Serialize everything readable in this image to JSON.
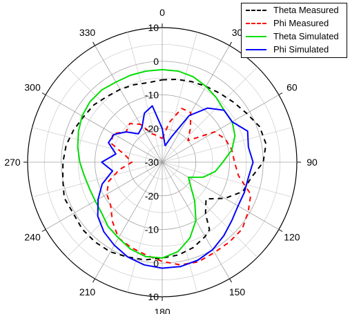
{
  "chart_data": {
    "type": "polar",
    "radial_axis": {
      "range": [
        -30,
        10
      ],
      "tick_labels": [
        "10",
        "0",
        "-10",
        "-20",
        "-30"
      ],
      "tick_values": [
        10,
        0,
        -10,
        -20,
        -30
      ]
    },
    "angular_axis": {
      "zero_at": "top",
      "direction": "clockwise",
      "tick_labels": [
        "0",
        "30",
        "60",
        "90",
        "120",
        "150",
        "180",
        "210",
        "240",
        "270",
        "300",
        "330"
      ],
      "tick_values": [
        0,
        30,
        60,
        90,
        120,
        150,
        180,
        210,
        240,
        270,
        300,
        330
      ]
    },
    "grid": true,
    "legend_position": "top-right",
    "series": [
      {
        "name": "Theta Measured",
        "color": "#000000",
        "dash": "dashed",
        "angles": [
          0,
          10,
          20,
          30,
          40,
          50,
          60,
          70,
          80,
          90,
          100,
          110,
          120,
          130,
          140,
          145,
          150,
          160,
          170,
          180,
          190,
          200,
          210,
          220,
          230,
          240,
          250,
          260,
          270,
          280,
          290,
          300,
          310,
          320,
          330,
          340,
          350,
          360
        ],
        "r": [
          -5.5,
          -5.0,
          -4.5,
          -4.0,
          -3.3,
          -2.3,
          -1.0,
          0.8,
          1.3,
          0.0,
          -3.2,
          -4.5,
          -8.5,
          -13.0,
          -10.0,
          -5.5,
          -4.5,
          -3.0,
          -2.0,
          -1.5,
          -0.5,
          0.0,
          0.8,
          1.0,
          1.0,
          0.5,
          1.0,
          0.0,
          -0.5,
          -1.0,
          -2.0,
          -3.0,
          -3.5,
          -4.5,
          -5.0,
          -5.5,
          -6.0,
          -5.5
        ]
      },
      {
        "name": "Phi Measured",
        "color": "#ff0000",
        "dash": "dashed",
        "angles": [
          0,
          10,
          20,
          30,
          40,
          50,
          60,
          70,
          80,
          90,
          100,
          110,
          120,
          130,
          140,
          150,
          160,
          170,
          180,
          190,
          200,
          210,
          220,
          230,
          240,
          250,
          260,
          270,
          280,
          290,
          300,
          310,
          320,
          330,
          340,
          350,
          360
        ],
        "r": [
          -23,
          -18,
          -13,
          -13,
          -17,
          -20,
          -12,
          -10,
          -9,
          -8.5,
          -7,
          -2,
          -0.5,
          1,
          1,
          1,
          1.5,
          1,
          -0.5,
          -2,
          -3,
          -4,
          -7,
          -10,
          -11,
          -13,
          -17,
          -21,
          -19,
          -14,
          -13,
          -16,
          -15,
          -17,
          -21,
          -22,
          -23
        ]
      },
      {
        "name": "Theta Simulated",
        "color": "#00dd00",
        "dash": "solid",
        "angles": [
          0,
          10,
          20,
          30,
          40,
          50,
          60,
          70,
          80,
          90,
          100,
          110,
          120,
          130,
          140,
          150,
          160,
          170,
          180,
          190,
          200,
          210,
          220,
          230,
          240,
          250,
          260,
          270,
          280,
          290,
          300,
          310,
          320,
          330,
          340,
          350,
          360
        ],
        "r": [
          -2.5,
          -2.5,
          -3,
          -4,
          -5,
          -6,
          -6,
          -7,
          -9,
          -12,
          -14,
          -17,
          -21,
          -19,
          -15,
          -10,
          -6,
          -3,
          -1.5,
          -1.5,
          -2.5,
          -4,
          -5,
          -6.5,
          -7,
          -7,
          -6.5,
          -5.5,
          -4.5,
          -3.5,
          -2.5,
          -2,
          -2,
          -2.5,
          -2.5,
          -2.5,
          -2.5
        ]
      },
      {
        "name": "Phi Simulated",
        "color": "#0000ff",
        "dash": "solid",
        "angles": [
          0,
          10,
          20,
          30,
          40,
          50,
          60,
          70,
          80,
          90,
          100,
          110,
          120,
          130,
          140,
          150,
          160,
          170,
          180,
          190,
          200,
          210,
          220,
          230,
          240,
          250,
          260,
          270,
          280,
          290,
          300,
          310,
          320,
          330,
          340,
          350,
          360
        ],
        "r": [
          -20,
          -25,
          -22,
          -14,
          -9,
          -6,
          -6,
          -3,
          -4,
          -3,
          -4,
          -4,
          -4,
          -3,
          -1.5,
          0,
          1,
          1.5,
          1.5,
          1,
          0,
          -1.5,
          -3,
          -5,
          -8,
          -11,
          -15,
          -12,
          -16,
          -13,
          -13.5,
          -16,
          -19,
          -18,
          -14.5,
          -13,
          -20
        ]
      }
    ]
  }
}
